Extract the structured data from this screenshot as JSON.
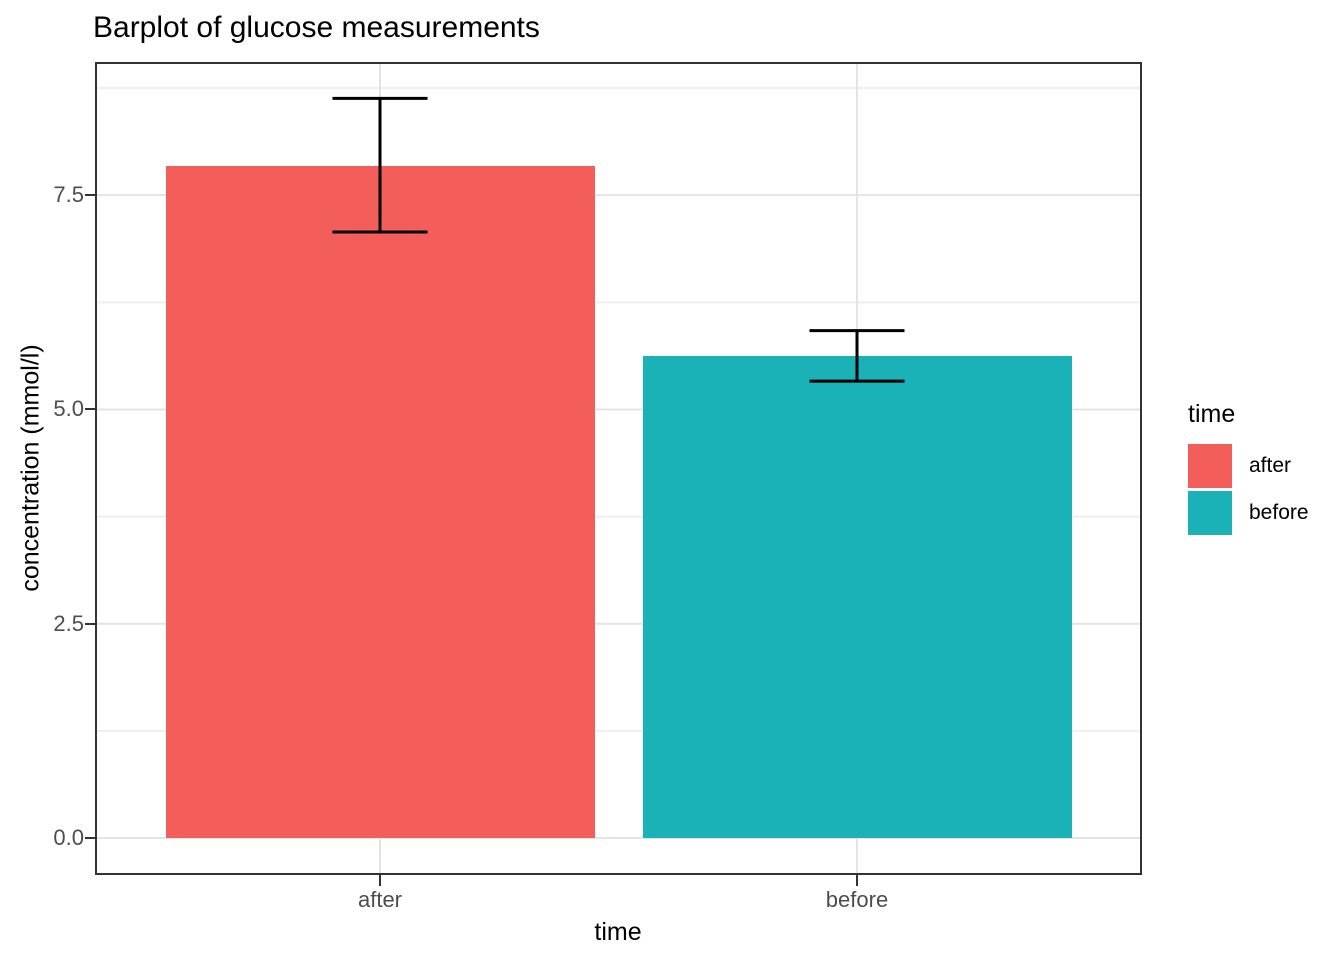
{
  "title": "Barplot of glucose measurements",
  "chart_data": {
    "type": "bar",
    "title": "Barplot of glucose measurements",
    "xlabel": "time",
    "ylabel": "concentration (mmol/l)",
    "categories": [
      "after",
      "before"
    ],
    "values": [
      7.84,
      5.62
    ],
    "error_bars": [
      {
        "lower": 7.07,
        "upper": 8.63
      },
      {
        "lower": 5.33,
        "upper": 5.92
      }
    ],
    "bar_colors": [
      "#F45E5A",
      "#1AB2B6"
    ],
    "ylim": [
      0,
      9.05
    ],
    "yticks": [
      0,
      2.5,
      5,
      7.5
    ],
    "ytick_labels": [
      "0.0",
      "2.5",
      "5.0",
      "7.5"
    ],
    "grid": true,
    "legend": {
      "title": "time",
      "position": "right",
      "entries": [
        {
          "label": "after",
          "color": "#F45E5A"
        },
        {
          "label": "before",
          "color": "#1AB2B6"
        }
      ]
    },
    "style": {
      "panel_border_color": "#333333",
      "grid_major_color": "#e4e4e4",
      "grid_minor_color": "#efefef",
      "errorbar_color": "#000000"
    }
  }
}
